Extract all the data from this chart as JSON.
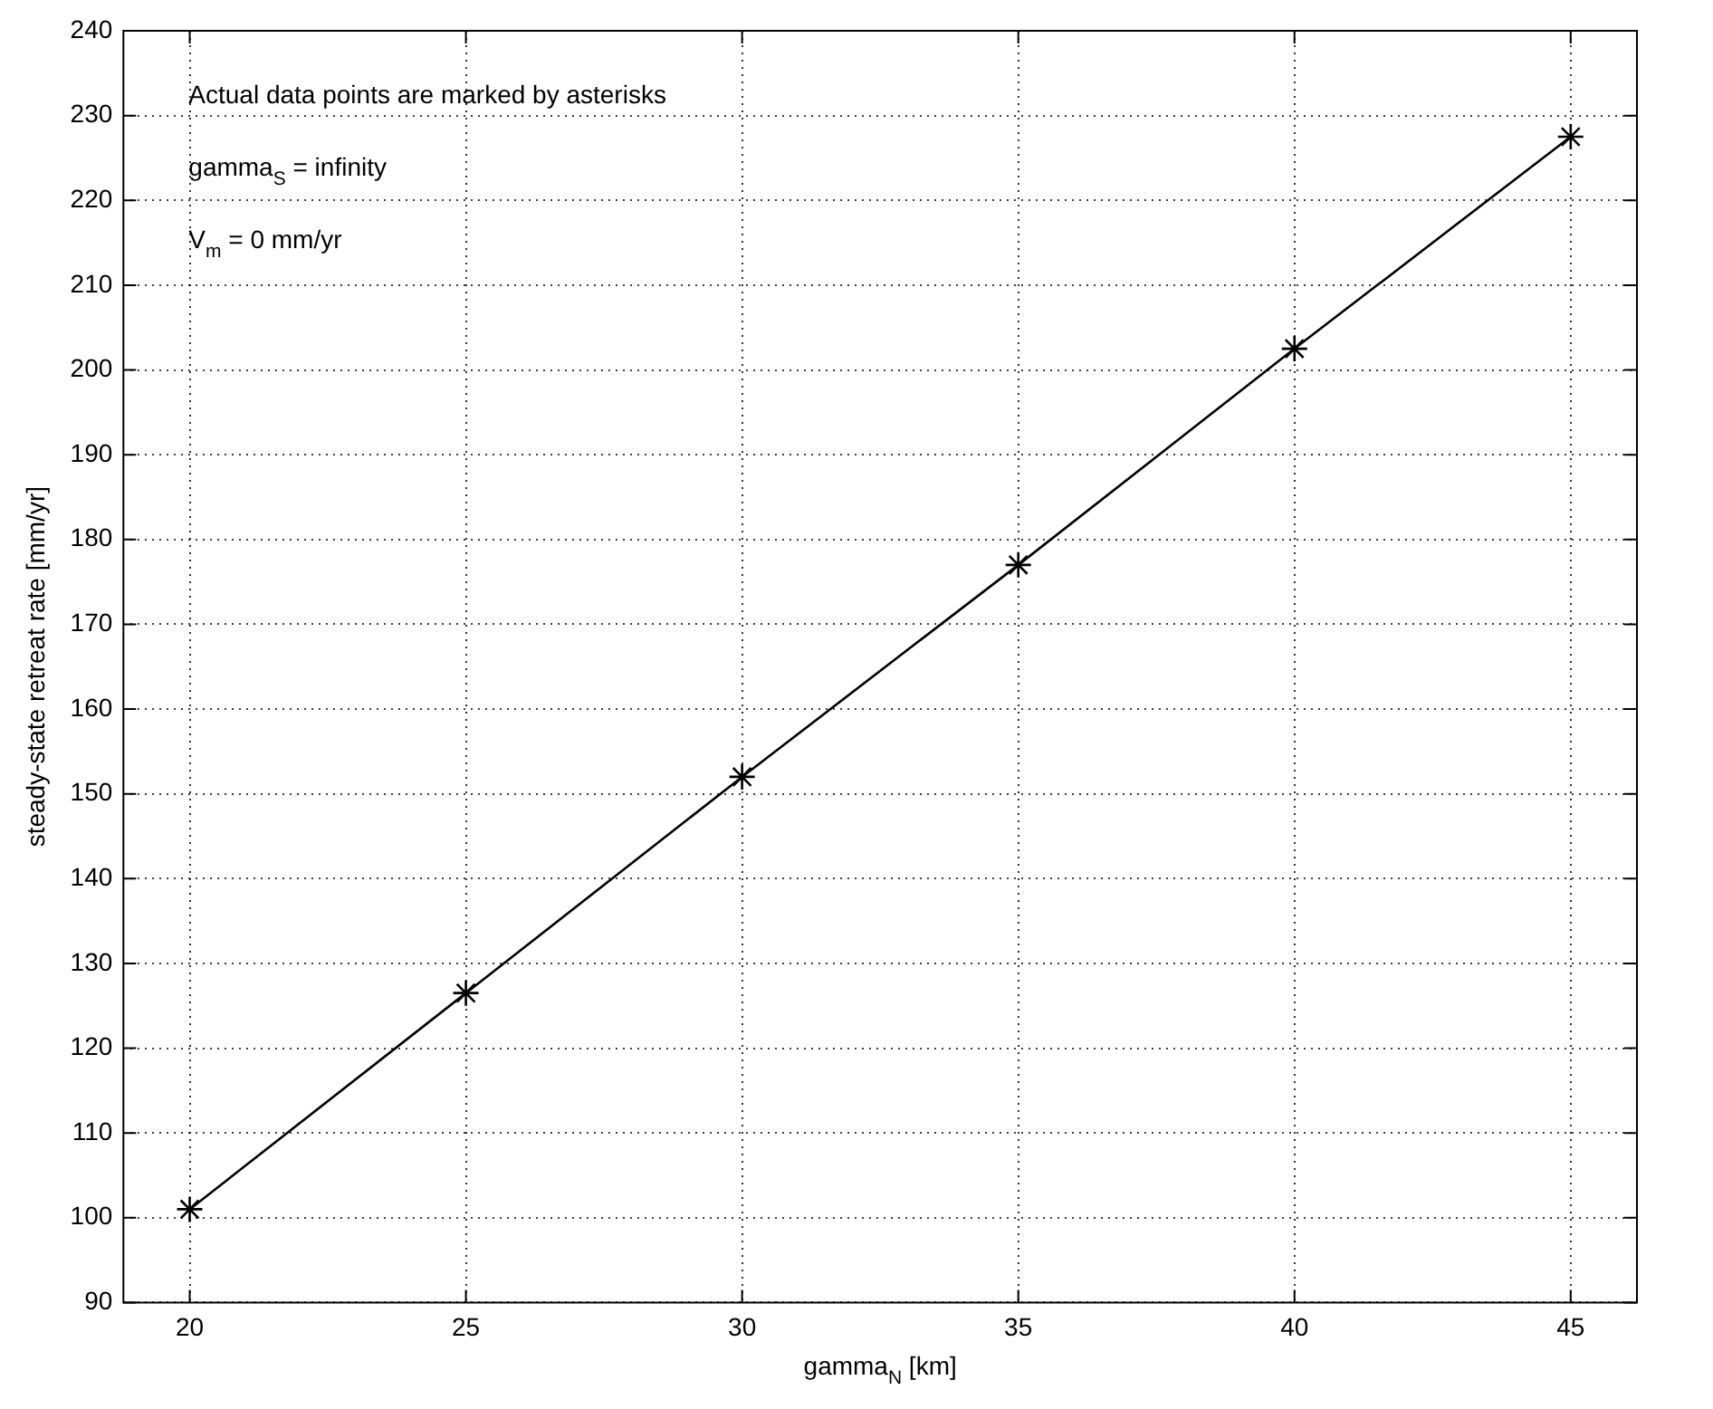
{
  "chart_data": {
    "type": "line",
    "xlabel": "gamma$_{N}$ [km]",
    "ylabel": "steady-state retreat rate [mm/yr]",
    "annotations": [
      "Actual data points are marked by asterisks",
      "gamma$_{S}$ = infinity",
      "V$_{m}$ = 0 mm/yr"
    ],
    "x": [
      20,
      25,
      30,
      35,
      40,
      45
    ],
    "series": [
      {
        "color": "#000000",
        "values": [
          101,
          126.5,
          152,
          177,
          202.5,
          227.5
        ]
      }
    ],
    "xlim": [
      18.8,
      46.2
    ],
    "xticks": [
      20,
      25,
      30,
      35,
      40,
      45
    ],
    "ylim": [
      90,
      240
    ],
    "yticks": [
      90,
      100,
      110,
      120,
      130,
      140,
      150,
      160,
      170,
      180,
      190,
      200,
      210,
      220,
      230,
      240
    ],
    "grid": true,
    "legend": false,
    "marker": "cross",
    "line_style": "solid"
  }
}
